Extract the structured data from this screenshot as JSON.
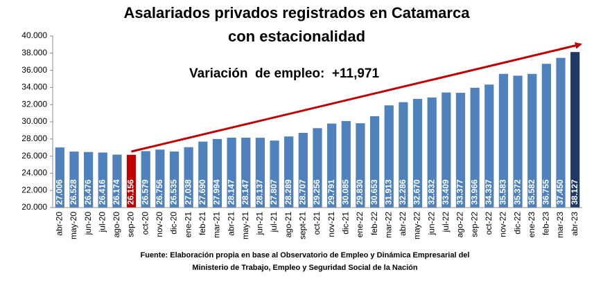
{
  "chart_data": {
    "type": "bar",
    "title": [
      "Asalariados privados registrados en Catamarca",
      "con estacionalidad"
    ],
    "annotation": "Variación  de empleo:  +11,971",
    "source": [
      "Fuente: Elaboración propia en base al Observatorio de Empleo y Dinámica Empresarial del",
      "Ministerio de Trabajo, Empleo y Seguridad Social de la Nación"
    ],
    "categories": [
      "abr-20",
      "may-20",
      "jun-20",
      "jul-20",
      "ago-20",
      "sep-20",
      "oct-20",
      "nov-20",
      "dic-20",
      "ene-21",
      "feb-21",
      "mar-21",
      "abr-21",
      "may-21",
      "jun-21",
      "jul-21",
      "ago-21",
      "sept-21",
      "oct-21",
      "nov-21",
      "dic-21",
      "ene-22",
      "feb-22",
      "mar-22",
      "abr-22",
      "may-22",
      "jun-22",
      "jul-22",
      "ago-22",
      "sep-22",
      "oct-22",
      "nov-22",
      "dic-22",
      "ene-23",
      "feb-23",
      "mar-23",
      "abr-23"
    ],
    "values": [
      27006,
      26528,
      26476,
      26416,
      26174,
      26156,
      26579,
      26756,
      26535,
      27038,
      27690,
      27994,
      28147,
      28147,
      28137,
      27807,
      28289,
      28707,
      29256,
      29791,
      30085,
      29830,
      30653,
      31913,
      32286,
      32670,
      32832,
      33409,
      33377,
      33966,
      34337,
      35583,
      35372,
      35582,
      36755,
      37450,
      38127
    ],
    "value_labels": [
      "27.006",
      "26.528",
      "26.476",
      "26.416",
      "26.174",
      "26.156",
      "26.579",
      "26.756",
      "26.535",
      "27.038",
      "27.690",
      "27.994",
      "28.147",
      "28.147",
      "28.137",
      "27.807",
      "28.289",
      "28.707",
      "29.256",
      "29.791",
      "30.085",
      "29.830",
      "30.653",
      "31.913",
      "32.286",
      "32.670",
      "32.832",
      "33.409",
      "33.377",
      "33.966",
      "34.337",
      "35.583",
      "35.372",
      "35.582",
      "36.755",
      "37.450",
      "38.127"
    ],
    "colors": [
      "#4f81bd",
      "#4f81bd",
      "#4f81bd",
      "#4f81bd",
      "#4f81bd",
      "#c00000",
      "#4f81bd",
      "#4f81bd",
      "#4f81bd",
      "#4f81bd",
      "#4f81bd",
      "#4f81bd",
      "#4f81bd",
      "#4f81bd",
      "#4f81bd",
      "#4f81bd",
      "#4f81bd",
      "#4f81bd",
      "#4f81bd",
      "#4f81bd",
      "#4f81bd",
      "#4f81bd",
      "#4f81bd",
      "#4f81bd",
      "#4f81bd",
      "#4f81bd",
      "#4f81bd",
      "#4f81bd",
      "#4f81bd",
      "#4f81bd",
      "#4f81bd",
      "#4f81bd",
      "#4f81bd",
      "#4f81bd",
      "#4f81bd",
      "#4f81bd",
      "#1f3864"
    ],
    "ylim": [
      20000,
      40000
    ],
    "yticks": [
      {
        "value": 20000,
        "label": "20.000"
      },
      {
        "value": 22000,
        "label": "22.000"
      },
      {
        "value": 24000,
        "label": "24.000"
      },
      {
        "value": 26000,
        "label": "26.000"
      },
      {
        "value": 28000,
        "label": "28.000"
      },
      {
        "value": 30000,
        "label": "30.000"
      },
      {
        "value": 32000,
        "label": "32.000"
      },
      {
        "value": 34000,
        "label": "34.000"
      },
      {
        "value": 36000,
        "label": "36.000"
      },
      {
        "value": 38000,
        "label": "38.000"
      },
      {
        "value": 40000,
        "label": "40.000"
      }
    ],
    "grid": false
  }
}
